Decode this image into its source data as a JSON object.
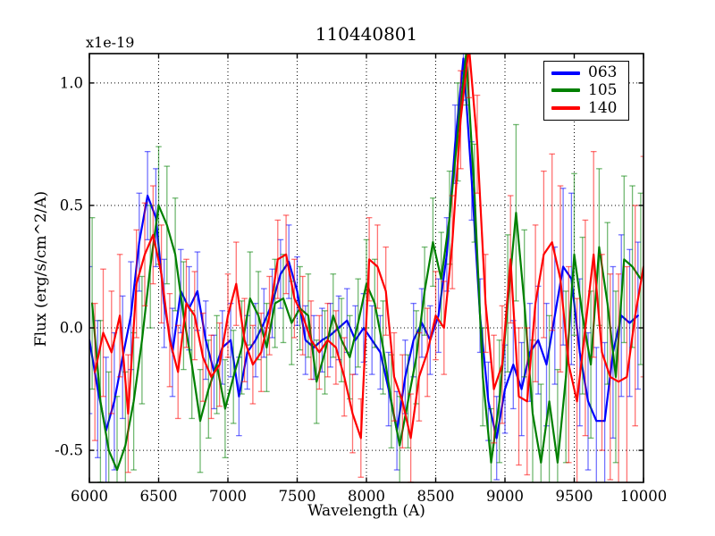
{
  "figure": {
    "title": "110440801",
    "offset_text": "x1e-19"
  },
  "legend": {
    "position": "upper right",
    "items": [
      {
        "label": "063",
        "color": "#0000ff"
      },
      {
        "label": "105",
        "color": "#008000"
      },
      {
        "label": "140",
        "color": "#ff0000"
      }
    ]
  },
  "chart_data": {
    "type": "line",
    "title": "110440801",
    "xlabel": "Wavelength (A)",
    "ylabel": "Flux (erg/s/cm^2/A)",
    "y_offset_factor": "x1e-19",
    "xlim": [
      6000,
      10000
    ],
    "ylim": [
      -0.631,
      1.12
    ],
    "grid": true,
    "grid_style": "dotted",
    "legend_position": "upper right",
    "xticks": [
      6000,
      6500,
      7000,
      7500,
      8000,
      8500,
      9000,
      9500,
      10000
    ],
    "xtick_labels": [
      "6000",
      "6500",
      "7000",
      "7500",
      "8000",
      "8500",
      "9000",
      "9500",
      "10000"
    ],
    "yticks": [
      -0.5,
      0.0,
      0.5,
      1.0
    ],
    "ytick_labels": [
      "-0.5",
      "0.0",
      "0.5",
      "1.0"
    ],
    "x": [
      6000,
      6060,
      6120,
      6180,
      6240,
      6300,
      6360,
      6420,
      6480,
      6540,
      6600,
      6660,
      6720,
      6780,
      6840,
      6900,
      6960,
      7020,
      7080,
      7140,
      7200,
      7260,
      7320,
      7380,
      7440,
      7500,
      7560,
      7620,
      7680,
      7740,
      7800,
      7860,
      7920,
      7980,
      8040,
      8100,
      8160,
      8220,
      8280,
      8340,
      8400,
      8460,
      8520,
      8580,
      8640,
      8700,
      8760,
      8820,
      8880,
      8940,
      9000,
      9060,
      9120,
      9180,
      9240,
      9300,
      9360,
      9420,
      9480,
      9540,
      9600,
      9660,
      9720,
      9780,
      9840,
      9900,
      9960
    ],
    "series": [
      {
        "name": "063",
        "color": "#0000ff",
        "x_shift": 0,
        "values": [
          -0.05,
          -0.25,
          -0.42,
          -0.3,
          -0.12,
          0.05,
          0.35,
          0.54,
          0.45,
          0.1,
          -0.1,
          0.15,
          0.08,
          0.15,
          -0.05,
          -0.18,
          -0.08,
          -0.05,
          -0.28,
          -0.1,
          -0.05,
          0.02,
          0.1,
          0.22,
          0.27,
          0.15,
          -0.05,
          -0.08,
          -0.05,
          -0.03,
          0.0,
          0.03,
          -0.05,
          0.0,
          -0.05,
          -0.1,
          -0.25,
          -0.42,
          -0.2,
          -0.05,
          0.02,
          -0.05,
          0.05,
          0.3,
          0.75,
          1.1,
          0.6,
          0.05,
          -0.3,
          -0.45,
          -0.25,
          -0.15,
          -0.25,
          -0.1,
          -0.05,
          -0.15,
          0.05,
          0.25,
          0.2,
          -0.1,
          -0.3,
          -0.38,
          -0.38,
          -0.1,
          0.05,
          0.02,
          0.05
        ],
        "errors": [
          0.3,
          0.28,
          0.3,
          0.28,
          0.25,
          0.22,
          0.2,
          0.18,
          0.2,
          0.18,
          0.18,
          0.17,
          0.17,
          0.16,
          0.16,
          0.15,
          0.15,
          0.15,
          0.16,
          0.15,
          0.15,
          0.14,
          0.14,
          0.14,
          0.15,
          0.14,
          0.14,
          0.13,
          0.13,
          0.13,
          0.13,
          0.13,
          0.14,
          0.14,
          0.14,
          0.15,
          0.15,
          0.16,
          0.15,
          0.15,
          0.14,
          0.14,
          0.15,
          0.15,
          0.16,
          0.17,
          0.16,
          0.15,
          0.16,
          0.17,
          0.18,
          0.18,
          0.19,
          0.2,
          0.22,
          0.25,
          0.28,
          0.32,
          0.35,
          0.3,
          0.28,
          0.3,
          0.32,
          0.35,
          0.33,
          0.3,
          0.3
        ]
      },
      {
        "name": "105",
        "color": "#008000",
        "x_shift": 20,
        "values": [
          0.1,
          -0.3,
          -0.5,
          -0.58,
          -0.48,
          -0.3,
          -0.05,
          0.25,
          0.5,
          0.42,
          0.3,
          0.05,
          -0.15,
          -0.38,
          -0.25,
          -0.15,
          -0.33,
          -0.2,
          -0.08,
          0.12,
          0.05,
          -0.08,
          0.1,
          0.12,
          0.02,
          0.08,
          0.05,
          -0.22,
          -0.1,
          0.05,
          -0.05,
          -0.12,
          0.02,
          0.18,
          0.1,
          -0.08,
          -0.3,
          -0.48,
          -0.3,
          -0.12,
          0.15,
          0.35,
          0.2,
          0.45,
          0.8,
          1.12,
          0.55,
          -0.2,
          -0.55,
          -0.3,
          0.1,
          0.47,
          0.1,
          -0.35,
          -0.55,
          -0.3,
          -0.55,
          -0.2,
          0.3,
          0.05,
          -0.15,
          0.33,
          0.1,
          -0.2,
          0.28,
          0.25,
          0.2
        ],
        "errors": [
          0.35,
          0.33,
          0.32,
          0.3,
          0.3,
          0.28,
          0.26,
          0.25,
          0.24,
          0.24,
          0.23,
          0.22,
          0.22,
          0.21,
          0.2,
          0.2,
          0.2,
          0.19,
          0.19,
          0.19,
          0.18,
          0.18,
          0.18,
          0.18,
          0.17,
          0.17,
          0.17,
          0.17,
          0.17,
          0.17,
          0.17,
          0.17,
          0.18,
          0.18,
          0.18,
          0.19,
          0.19,
          0.2,
          0.19,
          0.19,
          0.18,
          0.18,
          0.19,
          0.19,
          0.2,
          0.21,
          0.2,
          0.2,
          0.22,
          0.25,
          0.28,
          0.36,
          0.3,
          0.3,
          0.32,
          0.35,
          0.38,
          0.35,
          0.33,
          0.32,
          0.3,
          0.32,
          0.33,
          0.35,
          0.34,
          0.33,
          0.35
        ]
      },
      {
        "name": "140",
        "color": "#ff0000",
        "x_shift": 40,
        "values": [
          -0.18,
          -0.02,
          -0.1,
          0.05,
          -0.35,
          0.18,
          0.3,
          0.38,
          0.22,
          -0.05,
          -0.18,
          0.1,
          0.05,
          -0.12,
          -0.2,
          -0.15,
          0.05,
          0.18,
          -0.05,
          -0.15,
          -0.1,
          0.05,
          0.28,
          0.3,
          0.12,
          0.05,
          -0.05,
          -0.1,
          -0.05,
          -0.08,
          -0.2,
          -0.35,
          -0.45,
          0.28,
          0.25,
          0.15,
          -0.2,
          -0.3,
          -0.45,
          -0.2,
          -0.1,
          0.05,
          0.0,
          0.35,
          0.85,
          1.15,
          0.75,
          0.1,
          -0.25,
          -0.15,
          0.28,
          -0.28,
          -0.3,
          0.1,
          0.3,
          0.35,
          0.2,
          -0.15,
          -0.3,
          0.0,
          0.3,
          -0.1,
          -0.2,
          -0.22,
          -0.2,
          0.05,
          0.25
        ],
        "errors": [
          0.28,
          0.26,
          0.25,
          0.25,
          0.24,
          0.22,
          0.21,
          0.2,
          0.2,
          0.19,
          0.19,
          0.18,
          0.18,
          0.18,
          0.17,
          0.17,
          0.17,
          0.17,
          0.17,
          0.16,
          0.16,
          0.16,
          0.16,
          0.16,
          0.16,
          0.16,
          0.16,
          0.15,
          0.15,
          0.15,
          0.16,
          0.16,
          0.16,
          0.17,
          0.17,
          0.18,
          0.18,
          0.19,
          0.18,
          0.18,
          0.18,
          0.18,
          0.19,
          0.19,
          0.2,
          0.21,
          0.2,
          0.2,
          0.22,
          0.24,
          0.26,
          0.28,
          0.3,
          0.32,
          0.34,
          0.36,
          0.38,
          0.4,
          0.42,
          0.44,
          0.42,
          0.4,
          0.42,
          0.44,
          0.45,
          0.45,
          0.45
        ]
      }
    ]
  }
}
